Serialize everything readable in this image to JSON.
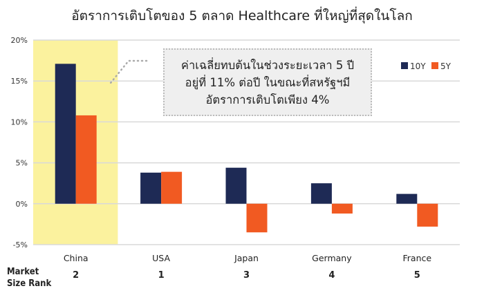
{
  "chart_data": {
    "type": "bar",
    "title": "อัตราการเติบโตของ 5 ตลาด Healthcare ที่ใหญ่ที่สุดในโลก",
    "categories": [
      "China",
      "USA",
      "Japan",
      "Germany",
      "France"
    ],
    "series": [
      {
        "name": "10Y",
        "color": "#1e2a55",
        "values": [
          17.1,
          3.8,
          4.4,
          2.5,
          1.2
        ]
      },
      {
        "name": "5Y",
        "color": "#f15a22",
        "values": [
          10.8,
          3.9,
          -3.5,
          -1.2,
          -2.8
        ]
      }
    ],
    "ylim": [
      -5,
      20
    ],
    "yticks": [
      -5,
      0,
      5,
      10,
      15,
      20
    ],
    "ytick_suffix": "%",
    "grid": true,
    "legend": "top-right",
    "highlight_category": "China",
    "highlight_color": "#fbf29e",
    "row_label": [
      "Market",
      "Size Rank"
    ],
    "market_size_rank": [
      "2",
      "1",
      "3",
      "4",
      "5"
    ],
    "annotation": [
      "ค่าเฉลี่ยทบต้นในช่วงระยะเวลา 5 ปี",
      "อยู่ที่ 11% ต่อปี ในขณะที่สหรัฐฯมี",
      "อัตราการเติบโตเพียง 4%"
    ]
  }
}
